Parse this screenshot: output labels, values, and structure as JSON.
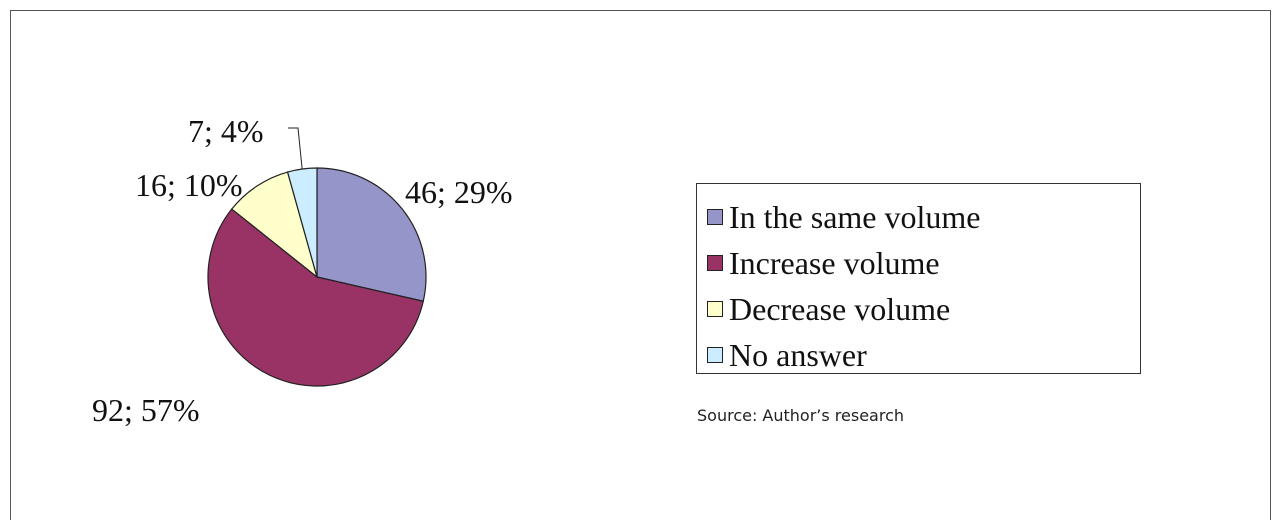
{
  "chart_data": {
    "type": "pie",
    "slices": [
      {
        "name": "In the same volume",
        "value": 46,
        "percent": 29,
        "label": "46; 29%",
        "color": "#9595C9"
      },
      {
        "name": "Increase volume",
        "value": 92,
        "percent": 57,
        "label": "92; 57%",
        "color": "#993366"
      },
      {
        "name": "Decrease volume",
        "value": 16,
        "percent": 10,
        "label": "16; 10%",
        "color": "#FFFFCC"
      },
      {
        "name": "No answer",
        "value": 7,
        "percent": 4,
        "label": "7; 4%",
        "color": "#CCECFF"
      }
    ],
    "legend_position": "right"
  },
  "source": "Source: Author’s research"
}
